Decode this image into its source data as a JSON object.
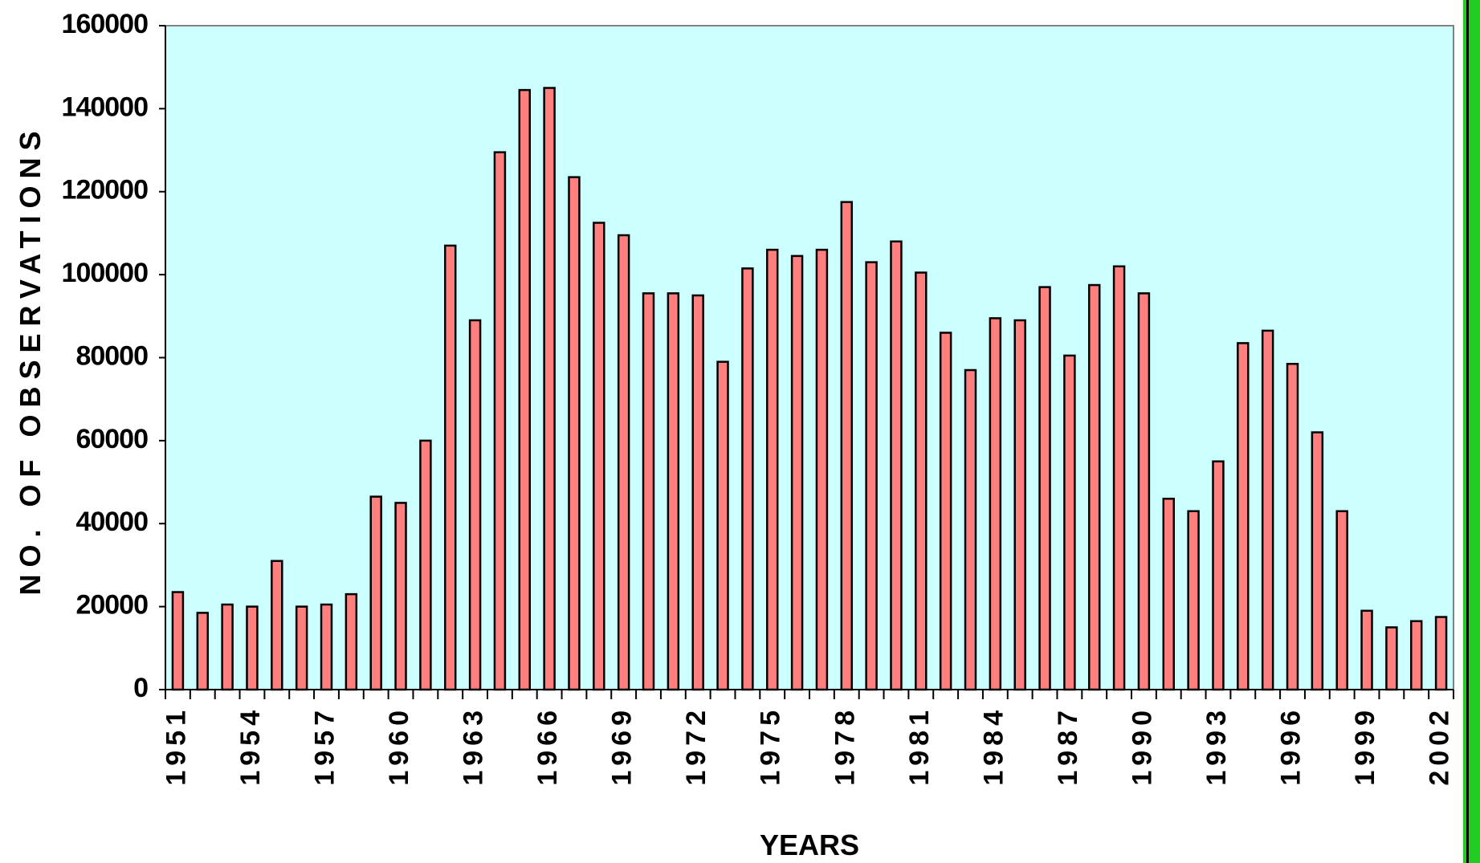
{
  "chart_data": {
    "type": "bar",
    "x_label": "YEARS",
    "y_label": "NO. OF OBSERVATIONS",
    "categories": [
      "1951",
      null,
      null,
      "1954",
      null,
      null,
      "1957",
      null,
      null,
      "1960",
      null,
      null,
      "1963",
      null,
      null,
      "1966",
      null,
      null,
      "1969",
      null,
      null,
      "1972",
      null,
      null,
      "1975",
      null,
      null,
      "1978",
      null,
      null,
      "1981",
      null,
      null,
      "1984",
      null,
      null,
      "1987",
      null,
      null,
      "1990",
      null,
      null,
      "1993",
      null,
      null,
      "1996",
      null,
      null,
      "1999",
      null,
      null,
      "2002"
    ],
    "values": [
      23500,
      18500,
      20500,
      20000,
      31000,
      20000,
      20500,
      23000,
      46500,
      45000,
      60000,
      107000,
      89000,
      129500,
      144500,
      145000,
      123500,
      112500,
      109500,
      95500,
      95500,
      95000,
      79000,
      101500,
      106000,
      104500,
      106000,
      117500,
      103000,
      108000,
      100500,
      86000,
      77000,
      89500,
      89000,
      97000,
      80500,
      97500,
      102000,
      95500,
      46000,
      43000,
      55000,
      83500,
      86500,
      78500,
      62000,
      43000,
      19000,
      15000,
      16500,
      17500
    ],
    "color": "#ff7f7f",
    "plot_background": "#ccffff",
    "ylim": [
      0,
      160000
    ],
    "yticks": [
      0,
      20000,
      40000,
      60000,
      80000,
      100000,
      120000,
      140000,
      160000
    ]
  }
}
